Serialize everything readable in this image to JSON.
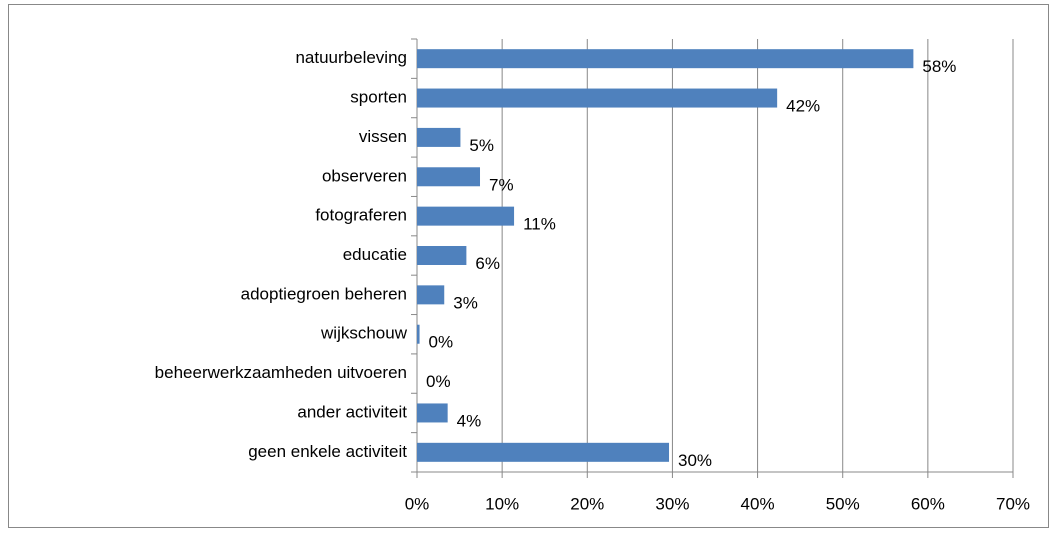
{
  "chart_data": {
    "type": "bar",
    "orientation": "horizontal",
    "categories": [
      "natuurbeleving",
      "sporten",
      "vissen",
      "observeren",
      "fotograferen",
      "educatie",
      "adoptiegroen beheren",
      "wijkschouw",
      "beheerwerkzaamheden uitvoeren",
      "ander activiteit",
      "geen enkele activiteit"
    ],
    "values": [
      58.3,
      42.3,
      5.1,
      7.4,
      11.4,
      5.8,
      3.2,
      0.3,
      0,
      3.6,
      29.6
    ],
    "value_labels": [
      "58%",
      "42%",
      "5%",
      "7%",
      "11%",
      "6%",
      "3%",
      "0%",
      "0%",
      "4%",
      "30%"
    ],
    "color": "#4f81bd",
    "xlim": [
      0,
      70
    ],
    "xticks": [
      {
        "value": 0,
        "label": "0%"
      },
      {
        "value": 10,
        "label": "10%"
      },
      {
        "value": 20,
        "label": "20%"
      },
      {
        "value": 30,
        "label": "30%"
      },
      {
        "value": 40,
        "label": "40%"
      },
      {
        "value": 50,
        "label": "50%"
      },
      {
        "value": 60,
        "label": "60%"
      },
      {
        "value": 70,
        "label": "70%"
      }
    ],
    "grid": true
  }
}
